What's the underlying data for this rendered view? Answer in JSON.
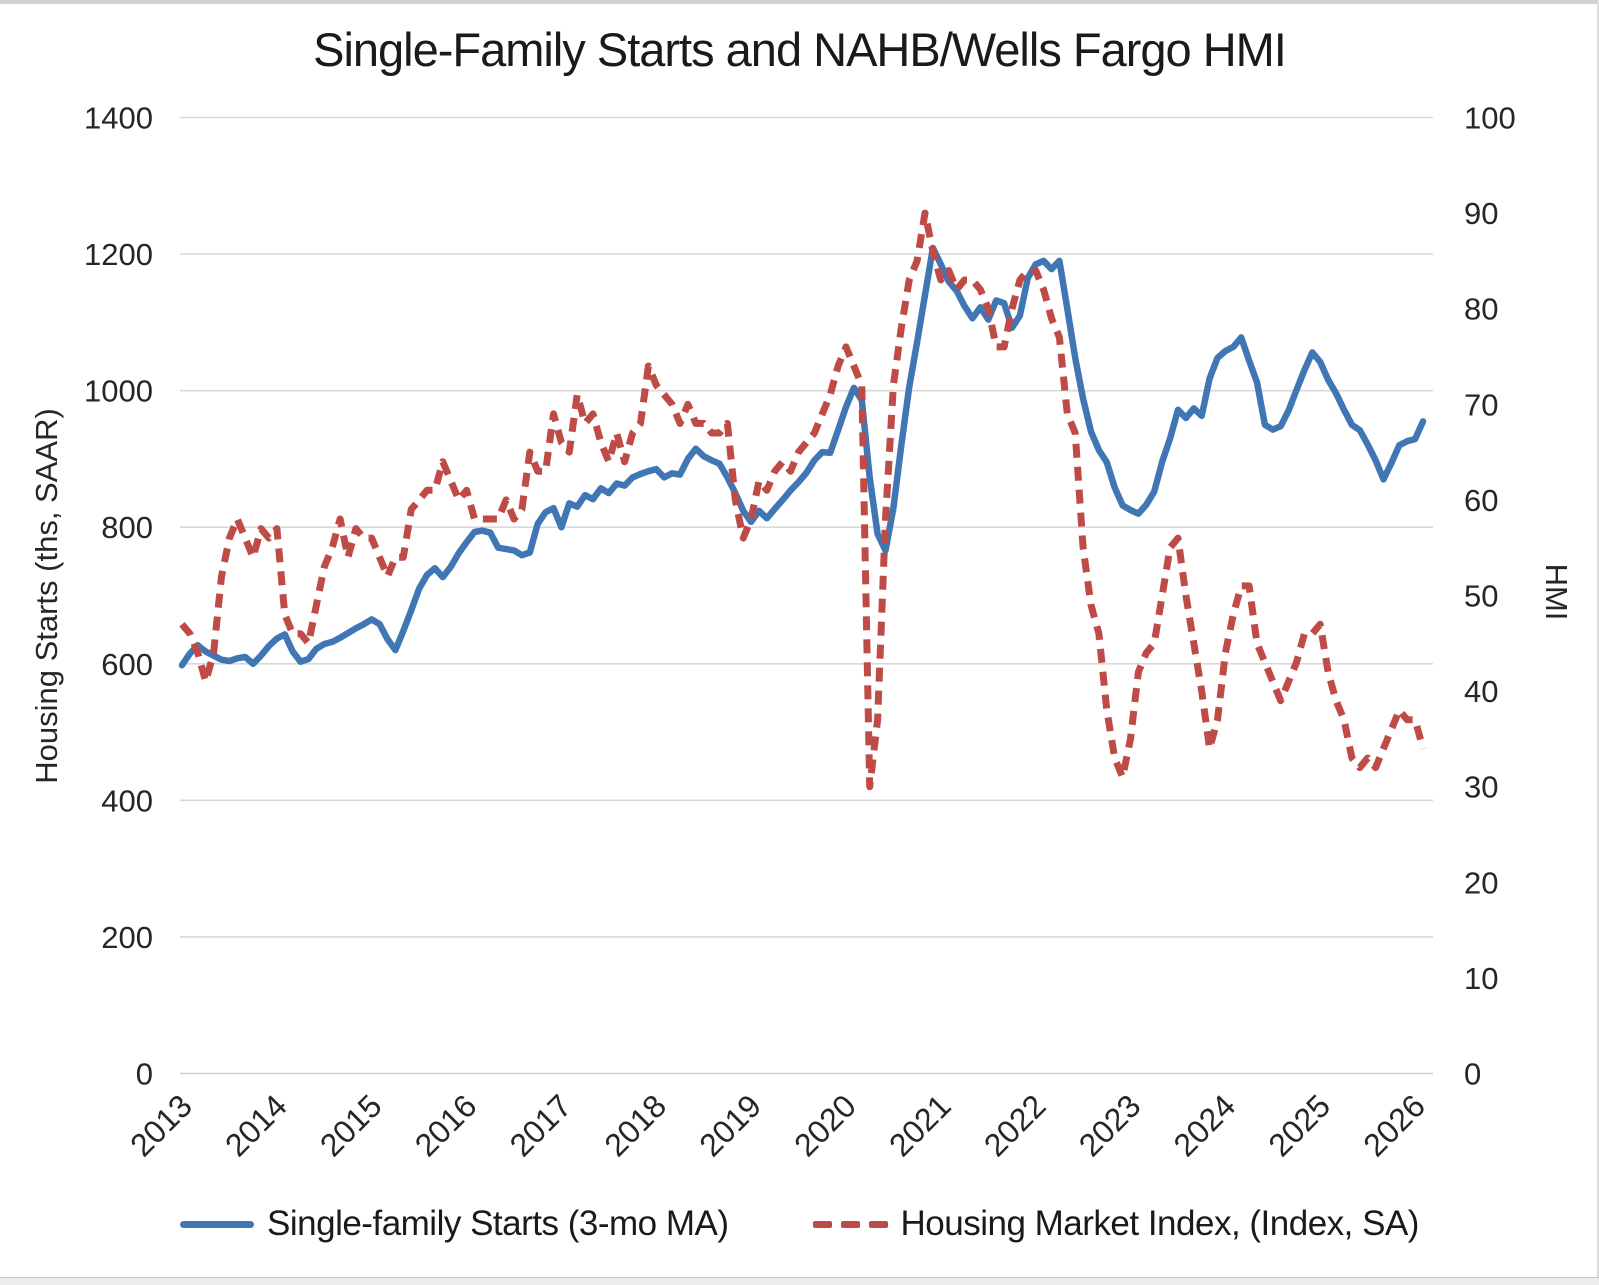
{
  "title": "Single-Family Starts and NAHB/Wells Fargo HMI",
  "y_left": {
    "label": "Housing Starts (ths, SAAR)",
    "ticks": [
      0,
      200,
      400,
      600,
      800,
      1000,
      1200,
      1400
    ]
  },
  "y_right": {
    "label": "HMI",
    "ticks": [
      0,
      10,
      20,
      30,
      40,
      50,
      60,
      70,
      80,
      90,
      100
    ]
  },
  "x_axis": {
    "years": [
      2013,
      2014,
      2015,
      2016,
      2017,
      2018,
      2019,
      2020,
      2021,
      2022,
      2023,
      2024,
      2025,
      2026
    ]
  },
  "legend": {
    "items": [
      {
        "label": "Single-family Starts (3-mo MA)",
        "color": "#4176b5",
        "style": "solid"
      },
      {
        "label": "Housing Market Index, (Index, SA)",
        "color": "#bf4b47",
        "style": "dashed"
      }
    ]
  },
  "colors": {
    "starts_line": "#4176b5",
    "hmi_line": "#bf4b47",
    "gridline": "#d9d9d9",
    "axis_line": "#cfcfcf",
    "text": "#262626"
  },
  "chart_data": {
    "type": "line",
    "title": "Single-Family Starts and NAHB/Wells Fargo HMI",
    "frequency": "monthly",
    "x_start": "2013-01",
    "x_end": "2026-02",
    "xlabel": "",
    "ylabel_left": "Housing Starts (ths, SAAR)",
    "ylabel_right": "HMI",
    "y_left_range": [
      0,
      1400
    ],
    "y_right_range": [
      0,
      100
    ],
    "grid": "horizontal-only",
    "legend_position": "bottom",
    "series": [
      {
        "name": "Single-family Starts (3-mo MA)",
        "axis": "left",
        "style": "solid",
        "color": "#4176b5",
        "values": [
          598,
          615,
          627,
          618,
          612,
          606,
          604,
          608,
          610,
          600,
          612,
          626,
          637,
          643,
          618,
          603,
          607,
          622,
          629,
          632,
          638,
          645,
          652,
          658,
          665,
          658,
          636,
          620,
          648,
          678,
          710,
          730,
          740,
          727,
          742,
          762,
          778,
          793,
          795,
          792,
          770,
          768,
          766,
          759,
          763,
          805,
          822,
          828,
          800,
          835,
          830,
          847,
          841,
          857,
          850,
          864,
          861,
          873,
          878,
          882,
          885,
          873,
          879,
          877,
          900,
          915,
          904,
          898,
          893,
          873,
          850,
          824,
          808,
          824,
          813,
          827,
          840,
          854,
          866,
          880,
          898,
          910,
          909,
          942,
          976,
          1004,
          986,
          873,
          790,
          766,
          828,
          920,
          1005,
          1071,
          1140,
          1209,
          1185,
          1160,
          1146,
          1124,
          1106,
          1122,
          1104,
          1132,
          1128,
          1092,
          1110,
          1165,
          1185,
          1190,
          1178,
          1190,
          1120,
          1048,
          988,
          940,
          913,
          895,
          858,
          832,
          825,
          820,
          833,
          852,
          896,
          930,
          972,
          960,
          974,
          963,
          1018,
          1048,
          1058,
          1064,
          1078,
          1044,
          1012,
          950,
          943,
          948,
          971,
          1001,
          1030,
          1056,
          1042,
          1016,
          996,
          972,
          950,
          942,
          921,
          898,
          870,
          894,
          920,
          926,
          929,
          955
        ]
      },
      {
        "name": "Housing Market Index, (Index, SA)",
        "axis": "right",
        "style": "dashed",
        "color": "#bf4b47",
        "values": [
          47,
          46,
          44,
          41,
          44,
          52,
          56,
          58,
          56,
          54,
          57,
          56,
          57,
          48,
          46,
          46,
          45,
          49,
          53,
          55,
          58,
          54,
          57,
          56,
          56,
          54,
          52,
          54,
          54,
          59,
          60,
          61,
          61,
          64,
          62,
          60,
          61,
          58,
          58,
          58,
          58,
          60,
          58,
          59,
          65,
          63,
          63,
          69,
          66,
          65,
          71,
          68,
          69,
          66,
          64,
          67,
          64,
          67,
          68,
          74,
          72,
          71,
          70,
          68,
          70,
          68,
          68,
          67,
          67,
          68,
          60,
          56,
          58,
          62,
          61,
          63,
          64,
          63,
          65,
          66,
          67,
          69,
          71,
          74,
          76,
          74,
          72,
          30,
          37,
          58,
          72,
          78,
          83,
          85,
          90,
          86,
          83,
          84,
          82,
          83,
          83,
          82,
          80,
          76,
          76,
          80,
          83,
          84,
          84,
          82,
          79,
          77,
          69,
          67,
          55,
          49,
          46,
          38,
          33,
          31,
          35,
          42,
          44,
          45,
          50,
          55,
          56,
          50,
          45,
          40,
          34,
          37,
          44,
          48,
          51,
          51,
          45,
          43,
          41,
          39,
          41,
          43,
          46,
          46,
          47,
          42,
          39,
          37,
          33,
          32,
          33,
          32,
          34,
          36,
          38,
          37,
          37,
          34
        ]
      }
    ]
  }
}
